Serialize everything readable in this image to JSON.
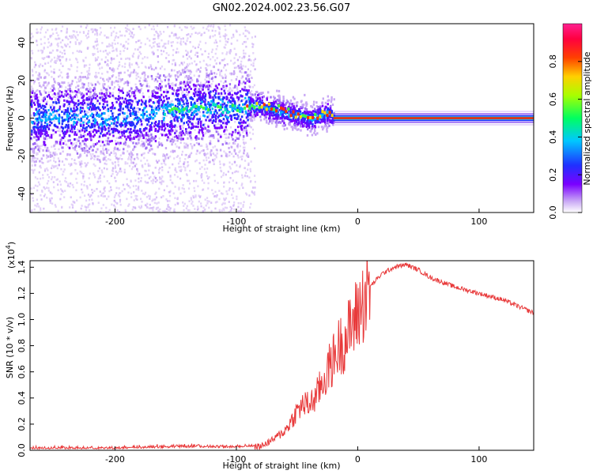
{
  "figure": {
    "title": "GN02.2024.002.23.56.G07",
    "colors": {
      "snr_line": "#e8393a",
      "axis": "#000000",
      "spectrum_faint": "#c9a8f5",
      "spectrum_core": "#6a00ff"
    }
  },
  "chart_data": [
    {
      "type": "heatmap",
      "title": "GN02.2024.002.23.56.G07",
      "xlabel": "Height of straight line (km)",
      "ylabel": "Frequency (Hz)",
      "xlim": [
        -270,
        145
      ],
      "ylim": [
        -50,
        50
      ],
      "x_ticks": [
        -200,
        -100,
        0,
        100
      ],
      "x_tick_labels": [
        "-200",
        "-100",
        "0",
        "100"
      ],
      "y_ticks": [
        -40,
        -20,
        0,
        20,
        40
      ],
      "y_tick_labels": [
        "-40",
        "-20",
        "0",
        "20",
        "40"
      ],
      "ridge": {
        "x": [
          -270,
          -200,
          -150,
          -120,
          -100,
          -90,
          -80,
          -70,
          -60,
          -50,
          -45,
          -40,
          -35,
          -30,
          -25,
          -20,
          -18,
          0,
          50,
          100,
          145
        ],
        "y": [
          1,
          1,
          5,
          6,
          5,
          7,
          7,
          5,
          3,
          2,
          1,
          0,
          1,
          2,
          3,
          2,
          0,
          0,
          0,
          0,
          0
        ]
      },
      "colorbar": {
        "label": "Normalized spectral amplitude",
        "range": [
          0,
          1
        ],
        "ticks": [
          0.0,
          0.2,
          0.4,
          0.6,
          0.8
        ],
        "tick_labels": [
          "0.0",
          "0.2",
          "0.4",
          "0.6",
          "0.8"
        ]
      },
      "grid": false
    },
    {
      "type": "line",
      "xlabel": "Height of straight line (km)",
      "ylabel": "SNR (10 * v/v)",
      "y_multiplier_label": "(x10",
      "y_multiplier_exponent": "4",
      "xlim": [
        -270,
        145
      ],
      "ylim": [
        0,
        1.45
      ],
      "x_ticks": [
        -200,
        -100,
        0,
        100
      ],
      "x_tick_labels": [
        "-200",
        "-100",
        "0",
        "100"
      ],
      "y_ticks": [
        0.0,
        0.2,
        0.4,
        0.6,
        0.8,
        1.0,
        1.2,
        1.4
      ],
      "y_tick_labels": [
        "0.0",
        "0.2",
        "0.4",
        "0.6",
        "0.8",
        "1.0",
        "1.2",
        "1.4"
      ],
      "series": [
        {
          "x": [
            -270,
            -200,
            -150,
            -100,
            -80,
            -70,
            -60,
            -55,
            -50,
            -45,
            -40,
            -35,
            -30,
            -25,
            -20,
            -15,
            -10,
            -5,
            0,
            5,
            10,
            20,
            30,
            40,
            50,
            60,
            80,
            100,
            120,
            145
          ],
          "y": [
            0.01,
            0.01,
            0.02,
            0.02,
            0.03,
            0.08,
            0.15,
            0.22,
            0.3,
            0.35,
            0.35,
            0.4,
            0.5,
            0.6,
            0.7,
            0.8,
            0.85,
            0.95,
            1.05,
            1.15,
            1.25,
            1.35,
            1.4,
            1.42,
            1.38,
            1.32,
            1.25,
            1.2,
            1.15,
            1.05
          ]
        }
      ],
      "grid": false
    }
  ]
}
